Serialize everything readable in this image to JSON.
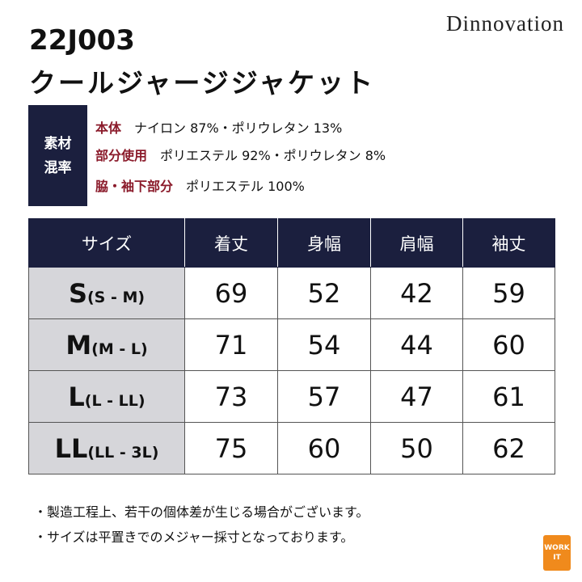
{
  "brand": "Dinnovation",
  "product_code": "22J003",
  "product_name": "クールジャージジャケット",
  "material": {
    "label": [
      "素材",
      "混率"
    ],
    "rows": [
      {
        "part": "本体",
        "composition": "ナイロン 87%・ポリウレタン 13%"
      },
      {
        "part": "部分使用",
        "composition": "ポリエステル 92%・ポリウレタン 8%"
      },
      {
        "part": "脇・袖下部分",
        "composition": "ポリエステル 100%"
      }
    ]
  },
  "table": {
    "header": [
      "サイズ",
      "着丈",
      "身幅",
      "肩幅",
      "袖丈"
    ],
    "rows": [
      {
        "size": "S",
        "range": "(S - M)",
        "values": [
          69,
          52,
          42,
          59
        ]
      },
      {
        "size": "M",
        "range": "(M - L)",
        "values": [
          71,
          54,
          44,
          60
        ]
      },
      {
        "size": "L",
        "range": "(L - LL)",
        "values": [
          73,
          57,
          47,
          61
        ]
      },
      {
        "size": "LL",
        "range": "(LL - 3L)",
        "values": [
          75,
          60,
          50,
          62
        ]
      }
    ]
  },
  "notes": [
    "・製造工程上、若干の個体差が生じる場合がございます。",
    "・サイズは平置きでのメジャー採寸となっております。"
  ],
  "logo": [
    "WORK",
    "IT"
  ]
}
